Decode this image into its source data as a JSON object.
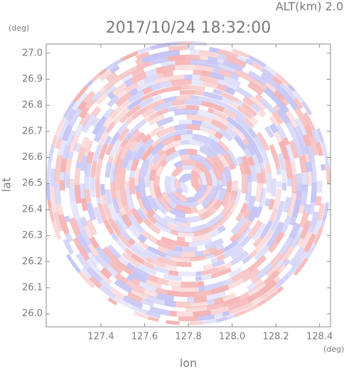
{
  "chart_data": {
    "type": "radar-ppi",
    "title": "2017/10/24 18:32:00",
    "subtitle": "ALT(km) 2.0",
    "x_label": "lon",
    "y_label": "lat",
    "x_unit": "(deg)",
    "y_unit": "(deg)",
    "xlim": [
      127.15,
      128.45
    ],
    "ylim": [
      25.95,
      27.035
    ],
    "xticks": [
      127.4,
      127.6,
      127.8,
      {
        "value": 128,
        "label": "128.0"
      },
      128.2,
      128.4
    ],
    "yticks": [
      {
        "value": 26,
        "label": "26.0"
      },
      26.1,
      26.2,
      26.3,
      26.4,
      26.5,
      26.6,
      26.7,
      26.8,
      26.9,
      {
        "value": 27,
        "label": "27.0"
      }
    ],
    "colors": [
      "#f5b3b3",
      "#c3c3f5"
    ]
  }
}
